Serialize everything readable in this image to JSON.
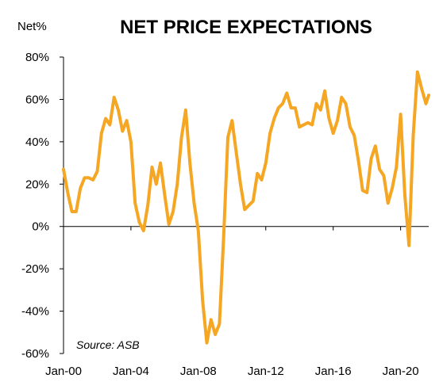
{
  "chart_data": {
    "type": "line",
    "title": "NET PRICE EXPECTATIONS",
    "ylabel": "Net%",
    "annotation": "Source: ASB",
    "ylim": [
      -60,
      80
    ],
    "xlim": [
      "2000-01",
      "2021-09"
    ],
    "y_ticks": [
      {
        "value": 80,
        "label": "80%"
      },
      {
        "value": 60,
        "label": "60%"
      },
      {
        "value": 40,
        "label": "40%"
      },
      {
        "value": 20,
        "label": "20%"
      },
      {
        "value": 0,
        "label": "0%"
      },
      {
        "value": -20,
        "label": "-20%"
      },
      {
        "value": -40,
        "label": "-40%"
      },
      {
        "value": -60,
        "label": "-60%"
      }
    ],
    "x_ticks": [
      {
        "value": "2000-01",
        "label": "Jan-00"
      },
      {
        "value": "2004-01",
        "label": "Jan-04"
      },
      {
        "value": "2008-01",
        "label": "Jan-08"
      },
      {
        "value": "2012-01",
        "label": "Jan-12"
      },
      {
        "value": "2016-01",
        "label": "Jan-16"
      },
      {
        "value": "2020-01",
        "label": "Jan-20"
      }
    ],
    "grid": false,
    "line_color": "#f5a623",
    "series": [
      {
        "points": [
          [
            "2000-01",
            27
          ],
          [
            "2000-04",
            16
          ],
          [
            "2000-07",
            7
          ],
          [
            "2000-10",
            7
          ],
          [
            "2001-01",
            18
          ],
          [
            "2001-04",
            23
          ],
          [
            "2001-07",
            23
          ],
          [
            "2001-10",
            22
          ],
          [
            "2002-01",
            26
          ],
          [
            "2002-04",
            44
          ],
          [
            "2002-07",
            51
          ],
          [
            "2002-10",
            48
          ],
          [
            "2003-01",
            61
          ],
          [
            "2003-04",
            55
          ],
          [
            "2003-07",
            45
          ],
          [
            "2003-10",
            50
          ],
          [
            "2004-01",
            40
          ],
          [
            "2004-04",
            11
          ],
          [
            "2004-07",
            2
          ],
          [
            "2004-10",
            -2
          ],
          [
            "2005-01",
            10
          ],
          [
            "2005-04",
            28
          ],
          [
            "2005-07",
            20
          ],
          [
            "2005-10",
            30
          ],
          [
            "2006-01",
            15
          ],
          [
            "2006-04",
            1
          ],
          [
            "2006-07",
            7
          ],
          [
            "2006-10",
            20
          ],
          [
            "2007-01",
            42
          ],
          [
            "2007-04",
            55
          ],
          [
            "2007-07",
            30
          ],
          [
            "2007-10",
            11
          ],
          [
            "2008-01",
            -2
          ],
          [
            "2008-04",
            -35
          ],
          [
            "2008-07",
            -55
          ],
          [
            "2008-10",
            -44
          ],
          [
            "2009-01",
            -51
          ],
          [
            "2009-04",
            -46
          ],
          [
            "2009-07",
            -5
          ],
          [
            "2009-10",
            42
          ],
          [
            "2010-01",
            50
          ],
          [
            "2010-04",
            35
          ],
          [
            "2010-07",
            20
          ],
          [
            "2010-10",
            8
          ],
          [
            "2011-01",
            10
          ],
          [
            "2011-04",
            12
          ],
          [
            "2011-07",
            25
          ],
          [
            "2011-10",
            22
          ],
          [
            "2012-01",
            30
          ],
          [
            "2012-04",
            44
          ],
          [
            "2012-07",
            51
          ],
          [
            "2012-10",
            56
          ],
          [
            "2013-01",
            58
          ],
          [
            "2013-04",
            63
          ],
          [
            "2013-07",
            56
          ],
          [
            "2013-10",
            56
          ],
          [
            "2014-01",
            47
          ],
          [
            "2014-04",
            48
          ],
          [
            "2014-07",
            49
          ],
          [
            "2014-10",
            48
          ],
          [
            "2015-01",
            58
          ],
          [
            "2015-04",
            55
          ],
          [
            "2015-07",
            64
          ],
          [
            "2015-10",
            51
          ],
          [
            "2016-01",
            44
          ],
          [
            "2016-04",
            50
          ],
          [
            "2016-07",
            61
          ],
          [
            "2016-10",
            58
          ],
          [
            "2017-01",
            47
          ],
          [
            "2017-04",
            43
          ],
          [
            "2017-07",
            31
          ],
          [
            "2017-10",
            17
          ],
          [
            "2018-01",
            16
          ],
          [
            "2018-04",
            32
          ],
          [
            "2018-07",
            38
          ],
          [
            "2018-10",
            27
          ],
          [
            "2019-01",
            24
          ],
          [
            "2019-04",
            11
          ],
          [
            "2019-07",
            18
          ],
          [
            "2019-10",
            28
          ],
          [
            "2020-01",
            53
          ],
          [
            "2020-04",
            15
          ],
          [
            "2020-07",
            -9
          ],
          [
            "2020-10",
            43
          ],
          [
            "2021-01",
            73
          ],
          [
            "2021-04",
            65
          ],
          [
            "2021-07",
            58
          ],
          [
            "2021-09",
            62
          ]
        ]
      }
    ]
  }
}
